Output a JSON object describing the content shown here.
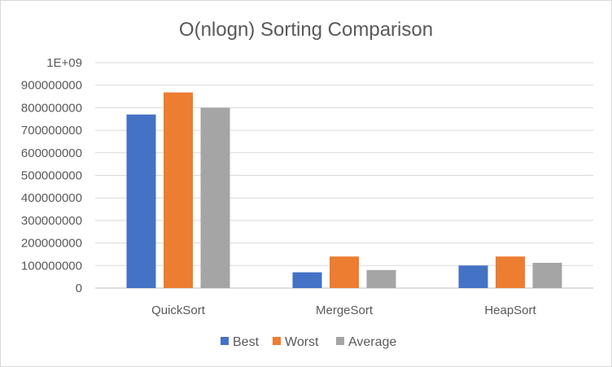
{
  "chart_data": {
    "type": "bar",
    "title": "O(nlogn) Sorting Comparison",
    "categories": [
      "QuickSort",
      "MergeSort",
      "HeapSort"
    ],
    "series": [
      {
        "name": "Best",
        "color": "#4472c4",
        "values": [
          770000000,
          70000000,
          100000000
        ]
      },
      {
        "name": "Worst",
        "color": "#ed7d31",
        "values": [
          868000000,
          140000000,
          140000000
        ]
      },
      {
        "name": "Average",
        "color": "#a5a5a5",
        "values": [
          800000000,
          80000000,
          112000000
        ]
      }
    ],
    "yticks": [
      "0",
      "100000000",
      "200000000",
      "300000000",
      "400000000",
      "500000000",
      "600000000",
      "700000000",
      "800000000",
      "900000000",
      "1E+09"
    ],
    "ylim": [
      0,
      1000000000
    ],
    "grid": true,
    "legend_position": "bottom",
    "xlabel": "",
    "ylabel": ""
  }
}
